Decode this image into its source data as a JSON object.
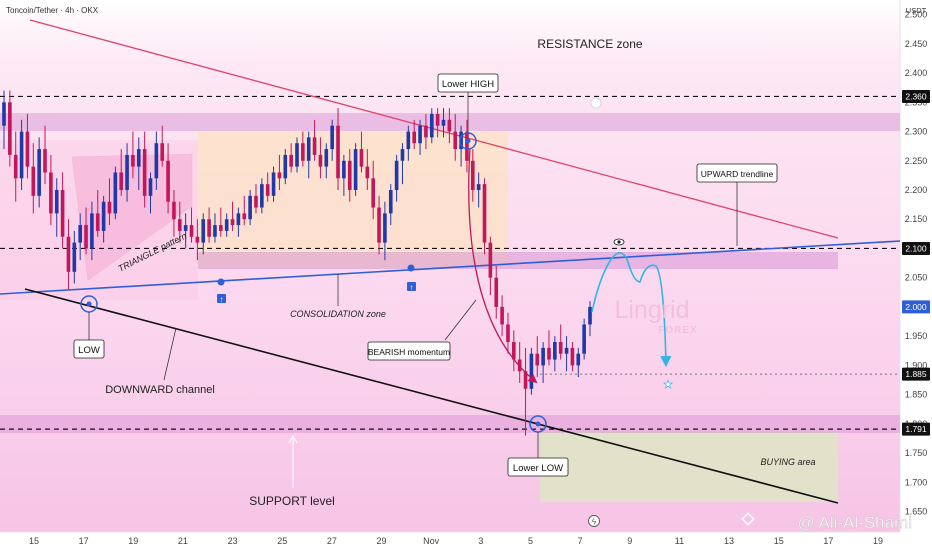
{
  "header": {
    "symbol_line": "Toncoin/Tether · 4h · OKX",
    "currency": "USDT"
  },
  "colors": {
    "up": "#1f3aa8",
    "down": "#c2185b",
    "resistance_line": "#e0436b",
    "upward_trendline": "#2f5fd8",
    "channel_line": "#111111",
    "projection": "#33b5e5",
    "bearish_arrow": "#c2185b",
    "zone_band": "#d48fd4",
    "consolidation_fill": "#fde2c4",
    "buying_area_fill": "#dfe3c6"
  },
  "chart_data": {
    "type": "candlestick",
    "ylim": [
      1.615,
      2.525
    ],
    "y_ticks": [
      2.5,
      2.45,
      2.4,
      2.35,
      2.3,
      2.25,
      2.2,
      2.15,
      2.1,
      2.05,
      2.0,
      1.95,
      1.9,
      1.85,
      1.8,
      1.75,
      1.7,
      1.65
    ],
    "x_ticks": [
      "15",
      "17",
      "19",
      "21",
      "23",
      "25",
      "27",
      "29",
      "Nov",
      "3",
      "5",
      "7",
      "9",
      "11",
      "13",
      "15",
      "17",
      "19"
    ],
    "price_labels": [
      "2.360",
      "2.100",
      "2.000",
      "1.885",
      "1.791"
    ],
    "current_price": "2.000",
    "levels": [
      {
        "name": "resistance-level",
        "value": 2.36
      },
      {
        "name": "trendline-level",
        "value": 2.1
      },
      {
        "name": "target-level",
        "value": 1.885
      },
      {
        "name": "support-level",
        "value": 1.791
      }
    ],
    "candles": [
      {
        "o": 2.31,
        "h": 2.37,
        "l": 2.27,
        "c": 2.35
      },
      {
        "o": 2.35,
        "h": 2.37,
        "l": 2.24,
        "c": 2.26
      },
      {
        "o": 2.26,
        "h": 2.3,
        "l": 2.18,
        "c": 2.22
      },
      {
        "o": 2.22,
        "h": 2.32,
        "l": 2.2,
        "c": 2.3
      },
      {
        "o": 2.3,
        "h": 2.33,
        "l": 2.22,
        "c": 2.24
      },
      {
        "o": 2.24,
        "h": 2.28,
        "l": 2.16,
        "c": 2.19
      },
      {
        "o": 2.19,
        "h": 2.29,
        "l": 2.17,
        "c": 2.27
      },
      {
        "o": 2.27,
        "h": 2.31,
        "l": 2.21,
        "c": 2.23
      },
      {
        "o": 2.23,
        "h": 2.26,
        "l": 2.14,
        "c": 2.16
      },
      {
        "o": 2.16,
        "h": 2.22,
        "l": 2.12,
        "c": 2.2
      },
      {
        "o": 2.2,
        "h": 2.23,
        "l": 2.1,
        "c": 2.12
      },
      {
        "o": 2.12,
        "h": 2.15,
        "l": 2.03,
        "c": 2.06
      },
      {
        "o": 2.06,
        "h": 2.13,
        "l": 2.04,
        "c": 2.11
      },
      {
        "o": 2.11,
        "h": 2.16,
        "l": 2.08,
        "c": 2.14
      },
      {
        "o": 2.14,
        "h": 2.17,
        "l": 2.09,
        "c": 2.1
      },
      {
        "o": 2.1,
        "h": 2.18,
        "l": 2.08,
        "c": 2.16
      },
      {
        "o": 2.16,
        "h": 2.2,
        "l": 2.12,
        "c": 2.13
      },
      {
        "o": 2.13,
        "h": 2.19,
        "l": 2.11,
        "c": 2.18
      },
      {
        "o": 2.18,
        "h": 2.22,
        "l": 2.14,
        "c": 2.16
      },
      {
        "o": 2.16,
        "h": 2.24,
        "l": 2.15,
        "c": 2.23
      },
      {
        "o": 2.23,
        "h": 2.27,
        "l": 2.19,
        "c": 2.2
      },
      {
        "o": 2.2,
        "h": 2.28,
        "l": 2.18,
        "c": 2.26
      },
      {
        "o": 2.26,
        "h": 2.3,
        "l": 2.22,
        "c": 2.24
      },
      {
        "o": 2.24,
        "h": 2.29,
        "l": 2.2,
        "c": 2.27
      },
      {
        "o": 2.27,
        "h": 2.3,
        "l": 2.17,
        "c": 2.19
      },
      {
        "o": 2.19,
        "h": 2.23,
        "l": 2.16,
        "c": 2.22
      },
      {
        "o": 2.22,
        "h": 2.3,
        "l": 2.2,
        "c": 2.28
      },
      {
        "o": 2.28,
        "h": 2.31,
        "l": 2.24,
        "c": 2.25
      },
      {
        "o": 2.25,
        "h": 2.28,
        "l": 2.16,
        "c": 2.18
      },
      {
        "o": 2.18,
        "h": 2.2,
        "l": 2.12,
        "c": 2.15
      },
      {
        "o": 2.15,
        "h": 2.18,
        "l": 2.11,
        "c": 2.13
      },
      {
        "o": 2.13,
        "h": 2.16,
        "l": 2.1,
        "c": 2.14
      },
      {
        "o": 2.14,
        "h": 2.17,
        "l": 2.11,
        "c": 2.12
      },
      {
        "o": 2.12,
        "h": 2.15,
        "l": 2.08,
        "c": 2.11
      },
      {
        "o": 2.11,
        "h": 2.16,
        "l": 2.09,
        "c": 2.15
      },
      {
        "o": 2.15,
        "h": 2.17,
        "l": 2.11,
        "c": 2.12
      },
      {
        "o": 2.12,
        "h": 2.16,
        "l": 2.11,
        "c": 2.14
      },
      {
        "o": 2.14,
        "h": 2.17,
        "l": 2.12,
        "c": 2.13
      },
      {
        "o": 2.13,
        "h": 2.16,
        "l": 2.12,
        "c": 2.15
      },
      {
        "o": 2.15,
        "h": 2.18,
        "l": 2.13,
        "c": 2.14
      },
      {
        "o": 2.14,
        "h": 2.17,
        "l": 2.12,
        "c": 2.16
      },
      {
        "o": 2.16,
        "h": 2.19,
        "l": 2.14,
        "c": 2.15
      },
      {
        "o": 2.15,
        "h": 2.2,
        "l": 2.14,
        "c": 2.19
      },
      {
        "o": 2.19,
        "h": 2.21,
        "l": 2.16,
        "c": 2.17
      },
      {
        "o": 2.17,
        "h": 2.22,
        "l": 2.16,
        "c": 2.21
      },
      {
        "o": 2.21,
        "h": 2.23,
        "l": 2.18,
        "c": 2.19
      },
      {
        "o": 2.19,
        "h": 2.24,
        "l": 2.18,
        "c": 2.23
      },
      {
        "o": 2.23,
        "h": 2.26,
        "l": 2.2,
        "c": 2.22
      },
      {
        "o": 2.22,
        "h": 2.27,
        "l": 2.21,
        "c": 2.26
      },
      {
        "o": 2.26,
        "h": 2.28,
        "l": 2.23,
        "c": 2.24
      },
      {
        "o": 2.24,
        "h": 2.29,
        "l": 2.23,
        "c": 2.28
      },
      {
        "o": 2.28,
        "h": 2.3,
        "l": 2.24,
        "c": 2.25
      },
      {
        "o": 2.25,
        "h": 2.3,
        "l": 2.22,
        "c": 2.29
      },
      {
        "o": 2.29,
        "h": 2.32,
        "l": 2.25,
        "c": 2.26
      },
      {
        "o": 2.26,
        "h": 2.29,
        "l": 2.22,
        "c": 2.24
      },
      {
        "o": 2.24,
        "h": 2.28,
        "l": 2.22,
        "c": 2.27
      },
      {
        "o": 2.27,
        "h": 2.32,
        "l": 2.25,
        "c": 2.31
      },
      {
        "o": 2.31,
        "h": 2.34,
        "l": 2.2,
        "c": 2.22
      },
      {
        "o": 2.22,
        "h": 2.26,
        "l": 2.19,
        "c": 2.25
      },
      {
        "o": 2.25,
        "h": 2.27,
        "l": 2.18,
        "c": 2.2
      },
      {
        "o": 2.2,
        "h": 2.28,
        "l": 2.19,
        "c": 2.27
      },
      {
        "o": 2.27,
        "h": 2.3,
        "l": 2.23,
        "c": 2.24
      },
      {
        "o": 2.24,
        "h": 2.27,
        "l": 2.2,
        "c": 2.22
      },
      {
        "o": 2.22,
        "h": 2.25,
        "l": 2.15,
        "c": 2.17
      },
      {
        "o": 2.17,
        "h": 2.19,
        "l": 2.09,
        "c": 2.11
      },
      {
        "o": 2.11,
        "h": 2.18,
        "l": 2.08,
        "c": 2.16
      },
      {
        "o": 2.16,
        "h": 2.21,
        "l": 2.14,
        "c": 2.2
      },
      {
        "o": 2.2,
        "h": 2.26,
        "l": 2.18,
        "c": 2.25
      },
      {
        "o": 2.25,
        "h": 2.28,
        "l": 2.21,
        "c": 2.27
      },
      {
        "o": 2.27,
        "h": 2.31,
        "l": 2.25,
        "c": 2.3
      },
      {
        "o": 2.3,
        "h": 2.32,
        "l": 2.27,
        "c": 2.28
      },
      {
        "o": 2.28,
        "h": 2.32,
        "l": 2.26,
        "c": 2.31
      },
      {
        "o": 2.31,
        "h": 2.33,
        "l": 2.27,
        "c": 2.29
      },
      {
        "o": 2.29,
        "h": 2.34,
        "l": 2.28,
        "c": 2.33
      },
      {
        "o": 2.33,
        "h": 2.34,
        "l": 2.29,
        "c": 2.31
      },
      {
        "o": 2.31,
        "h": 2.34,
        "l": 2.29,
        "c": 2.32
      },
      {
        "o": 2.32,
        "h": 2.34,
        "l": 2.28,
        "c": 2.3
      },
      {
        "o": 2.3,
        "h": 2.33,
        "l": 2.25,
        "c": 2.27
      },
      {
        "o": 2.27,
        "h": 2.31,
        "l": 2.24,
        "c": 2.3
      },
      {
        "o": 2.3,
        "h": 2.32,
        "l": 2.23,
        "c": 2.25
      },
      {
        "o": 2.25,
        "h": 2.27,
        "l": 2.18,
        "c": 2.2
      },
      {
        "o": 2.2,
        "h": 2.23,
        "l": 2.17,
        "c": 2.21
      },
      {
        "o": 2.21,
        "h": 2.22,
        "l": 2.09,
        "c": 2.11
      },
      {
        "o": 2.11,
        "h": 2.12,
        "l": 2.02,
        "c": 2.05
      },
      {
        "o": 2.05,
        "h": 2.07,
        "l": 1.98,
        "c": 2.0
      },
      {
        "o": 2.0,
        "h": 2.02,
        "l": 1.95,
        "c": 1.97
      },
      {
        "o": 1.97,
        "h": 1.99,
        "l": 1.92,
        "c": 1.94
      },
      {
        "o": 1.94,
        "h": 1.96,
        "l": 1.89,
        "c": 1.91
      },
      {
        "o": 1.91,
        "h": 1.94,
        "l": 1.87,
        "c": 1.89
      },
      {
        "o": 1.89,
        "h": 1.93,
        "l": 1.78,
        "c": 1.86
      },
      {
        "o": 1.86,
        "h": 1.93,
        "l": 1.85,
        "c": 1.92
      },
      {
        "o": 1.92,
        "h": 1.95,
        "l": 1.88,
        "c": 1.9
      },
      {
        "o": 1.9,
        "h": 1.94,
        "l": 1.87,
        "c": 1.93
      },
      {
        "o": 1.93,
        "h": 1.96,
        "l": 1.9,
        "c": 1.91
      },
      {
        "o": 1.91,
        "h": 1.95,
        "l": 1.89,
        "c": 1.94
      },
      {
        "o": 1.94,
        "h": 1.97,
        "l": 1.91,
        "c": 1.92
      },
      {
        "o": 1.92,
        "h": 1.95,
        "l": 1.89,
        "c": 1.93
      },
      {
        "o": 1.93,
        "h": 1.94,
        "l": 1.89,
        "c": 1.9
      },
      {
        "o": 1.9,
        "h": 1.93,
        "l": 1.88,
        "c": 1.92
      },
      {
        "o": 1.92,
        "h": 1.98,
        "l": 1.91,
        "c": 1.97
      },
      {
        "o": 1.97,
        "h": 2.01,
        "l": 1.95,
        "c": 2.0
      }
    ]
  },
  "annotations": {
    "resistance_zone": "RESISTANCE zone",
    "lower_high": "Lower HIGH",
    "upward_trendline": "UPWARD trendline",
    "triangle_pattern": "TRIANGLE pattern",
    "consolidation_zone": "CONSOLIDATION zone",
    "bearish_momentum": "BEARISH momentum",
    "low": "LOW",
    "downward_channel": "DOWNWARD channel",
    "lower_low": "Lower LOW",
    "buying_area": "BUYING area",
    "support_level": "SUPPORT level"
  },
  "watermark": {
    "logo_text": "Lingrid",
    "logo_sub": "FOREX",
    "author": "@ Ali-Al-Shami"
  }
}
